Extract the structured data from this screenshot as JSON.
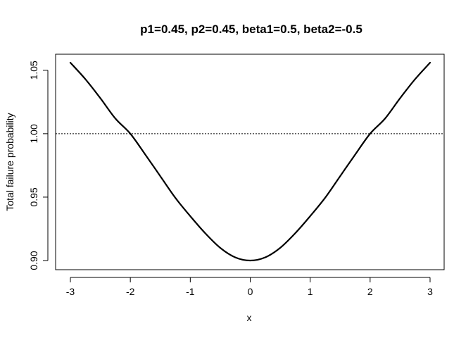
{
  "chart_data": {
    "type": "line",
    "title": "p1=0.45, p2=0.45, beta1=0.5, beta2=-0.5",
    "xlabel": "x",
    "ylabel": "Total failure probability",
    "xlim": [
      -3,
      3
    ],
    "ylim": [
      0.9,
      1.056
    ],
    "x_ticks": [
      "-3",
      "-2",
      "-1",
      "0",
      "1",
      "2",
      "3"
    ],
    "y_ticks": [
      "0.90",
      "0.95",
      "1.00",
      "1.05"
    ],
    "reference_line": {
      "y": 1.0,
      "style": "dotted"
    },
    "grid": false,
    "legend": "none",
    "series": [
      {
        "color": "#000000",
        "x": [
          -3.0,
          -2.75,
          -2.5,
          -2.25,
          -2.0,
          -1.75,
          -1.5,
          -1.25,
          -1.0,
          -0.75,
          -0.5,
          -0.25,
          0.0,
          0.25,
          0.5,
          0.75,
          1.0,
          1.25,
          1.5,
          1.75,
          2.0,
          2.25,
          2.5,
          2.75,
          3.0
        ],
        "y": [
          1.056,
          1.043,
          1.028,
          1.012,
          1.0,
          0.9835,
          0.9665,
          0.9495,
          0.935,
          0.9215,
          0.91,
          0.9025,
          0.9,
          0.9025,
          0.91,
          0.9215,
          0.935,
          0.9495,
          0.9665,
          0.9835,
          1.0,
          1.012,
          1.028,
          1.043,
          1.056
        ]
      }
    ]
  }
}
